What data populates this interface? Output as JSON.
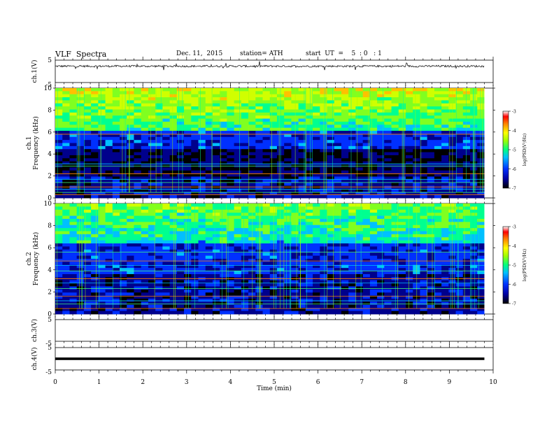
{
  "header": {
    "title": "VLF  Spectra",
    "date": "Dec. 11,  2015",
    "station": "station= ATH",
    "start": "start  UT  =    5  : 0   : 1"
  },
  "chart_data": [
    {
      "type": "line",
      "ylabel": "ch.1(V)",
      "ylim": [
        -5,
        5
      ],
      "y_ticks": [
        "5",
        "-5"
      ],
      "description_level": 2.3
    },
    {
      "type": "heatmap",
      "ylabel_channel": "ch.1",
      "ylabel": "Frequency  (kHz)",
      "ylim": [
        0,
        10
      ],
      "y_ticks": [
        "0",
        "2",
        "4",
        "6",
        "8",
        "10"
      ],
      "colorbar": {
        "label": "log(PSD(V²/Hz)",
        "range": [
          -7,
          -3
        ],
        "ticks": [
          "-3",
          "-4",
          "-5",
          "-6",
          "-7"
        ]
      }
    },
    {
      "type": "heatmap",
      "ylabel_channel": "ch.2",
      "ylabel": "Frequency  (kHz)",
      "ylim": [
        0,
        10
      ],
      "y_ticks": [
        "0",
        "2",
        "4",
        "6",
        "8",
        "10"
      ],
      "colorbar": {
        "label": "log(PSD(V²/Hz)",
        "range": [
          -7,
          -3
        ],
        "ticks": [
          "-3",
          "-4",
          "-5",
          "-6",
          "-7"
        ]
      }
    },
    {
      "type": "line",
      "ylabel": "ch.3(V)",
      "ylim": [
        -5,
        5
      ],
      "y_ticks": [
        "5",
        "-5"
      ]
    },
    {
      "type": "line",
      "ylabel": "ch.4(V)",
      "ylim": [
        -5,
        5
      ],
      "y_ticks": [
        "5",
        "-5"
      ],
      "constant_level": 0
    }
  ],
  "xaxis": {
    "xlabel": "Time  (min)",
    "xlim": [
      0,
      10
    ],
    "ticks": [
      "0",
      "1",
      "2",
      "3",
      "4",
      "5",
      "6",
      "7",
      "8",
      "9",
      "10"
    ],
    "data_end": 9.8
  }
}
